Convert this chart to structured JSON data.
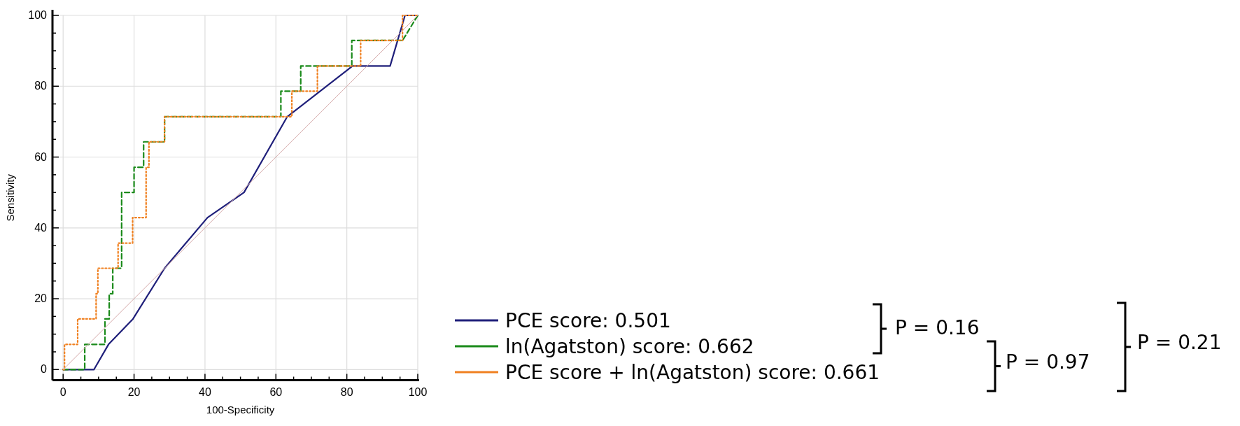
{
  "chart_data": {
    "type": "line",
    "xlabel": "100-Specificity",
    "ylabel": "Sensitivity",
    "xlim": [
      -3,
      100
    ],
    "ylim": [
      -3,
      100
    ],
    "xticks": [
      0,
      {
        "value": 5,
        "label": null
      },
      {
        "value": 10,
        "label": null
      },
      {
        "value": 15,
        "label": null
      },
      20,
      {
        "value": 25,
        "label": null
      },
      {
        "value": 30,
        "label": null
      },
      {
        "value": 35,
        "label": null
      },
      40,
      {
        "value": 45,
        "label": null
      },
      {
        "value": 50,
        "label": null
      },
      {
        "value": 55,
        "label": null
      },
      60,
      {
        "value": 65,
        "label": null
      },
      {
        "value": 70,
        "label": null
      },
      {
        "value": 75,
        "label": null
      },
      80,
      {
        "value": 85,
        "label": null
      },
      {
        "value": 90,
        "label": null
      },
      {
        "value": 95,
        "label": null
      },
      100
    ],
    "yticks": [
      0,
      {
        "value": 5,
        "label": null
      },
      {
        "value": 10,
        "label": null
      },
      {
        "value": 15,
        "label": null
      },
      20,
      {
        "value": 25,
        "label": null
      },
      {
        "value": 30,
        "label": null
      },
      {
        "value": 35,
        "label": null
      },
      40,
      {
        "value": 45,
        "label": null
      },
      {
        "value": 50,
        "label": null
      },
      {
        "value": 55,
        "label": null
      },
      60,
      {
        "value": 65,
        "label": null
      },
      {
        "value": 70,
        "label": null
      },
      {
        "value": 75,
        "label": null
      },
      80,
      {
        "value": 85,
        "label": null
      },
      {
        "value": 90,
        "label": null
      },
      {
        "value": 95,
        "label": null
      },
      100
    ],
    "grid": true,
    "legend": "bottom right",
    "marker": "none",
    "series": [
      {
        "color": "#d4a8a8",
        "line_style": "solid",
        "x": [
          0,
          100
        ],
        "values": [
          0,
          100
        ]
      },
      {
        "name": "PCE score: 0.501",
        "color": "#1f1f7a",
        "line_style": "solid",
        "x": [
          0,
          8.7,
          12.8,
          19.7,
          28.6,
          40.7,
          51,
          63.2,
          81.6,
          92.2,
          96.4,
          100
        ],
        "values": [
          0,
          0,
          7.1,
          14.3,
          28.6,
          42.9,
          50,
          71.4,
          85.7,
          85.7,
          100,
          100
        ]
      },
      {
        "name": "ln(Agatston) score: 0.662",
        "color": "#1a8a1a",
        "line_style": "dashed",
        "x": [
          0,
          6.1,
          6.1,
          11.8,
          11.8,
          13,
          13,
          14,
          14,
          16.5,
          16.5,
          20,
          20,
          22.7,
          22.7,
          28.6,
          28.6,
          61.4,
          61.4,
          67,
          67,
          81.4,
          81.4,
          95.7,
          100
        ],
        "values": [
          0,
          0,
          7.1,
          7.1,
          14.3,
          14.3,
          21.4,
          21.4,
          28.6,
          28.6,
          50,
          50,
          57.1,
          57.1,
          64.3,
          64.3,
          71.4,
          71.4,
          78.6,
          78.6,
          85.7,
          85.7,
          92.9,
          92.9,
          100
        ]
      },
      {
        "name": "PCE score + ln(Agatston) score: 0.661",
        "color": "#f08020",
        "line_style": "dotted",
        "x": [
          0,
          0.4,
          0.4,
          4.1,
          4.1,
          9.3,
          9.3,
          9.8,
          9.8,
          15.5,
          15.5,
          19.6,
          19.6,
          23.4,
          23.4,
          24.2,
          24.2,
          28.6,
          28.6,
          64.5,
          64.5,
          71.7,
          71.7,
          83.9,
          83.9,
          95.7,
          95.7,
          100
        ],
        "values": [
          0,
          0,
          7.1,
          7.1,
          14.3,
          14.3,
          21.4,
          21.4,
          28.6,
          28.6,
          35.7,
          35.7,
          42.9,
          42.9,
          57.1,
          57.1,
          64.3,
          64.3,
          71.4,
          71.4,
          78.6,
          78.6,
          85.7,
          85.7,
          92.9,
          92.9,
          100,
          100
        ]
      }
    ],
    "annotations": [
      "P = 0.16",
      "P = 0.97",
      "P = 0.21"
    ]
  }
}
